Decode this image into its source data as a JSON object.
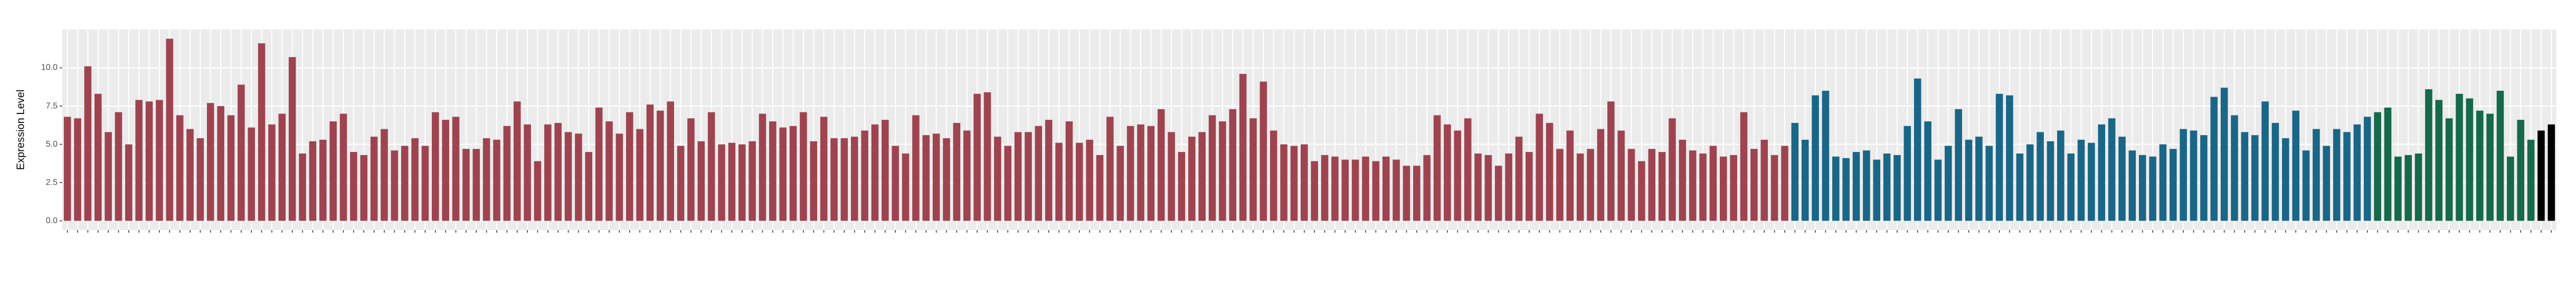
{
  "chart_data": {
    "type": "bar",
    "y_label": "Expression Level",
    "ylim": [
      -0.6,
      12.5
    ],
    "yticks": [
      {
        "value": 0,
        "label": "0.0"
      },
      {
        "value": 2.5,
        "label": "2.5"
      },
      {
        "value": 5,
        "label": "5.0"
      },
      {
        "value": 7.5,
        "label": "7.5"
      },
      {
        "value": 10,
        "label": "10.0"
      }
    ],
    "grid": true,
    "categories": [
      null,
      null,
      null,
      null,
      null,
      null,
      null,
      null,
      null,
      null,
      null,
      null,
      null,
      null,
      null,
      null,
      null,
      null,
      null,
      null,
      null,
      null,
      null,
      null,
      null,
      null,
      null,
      null,
      null,
      null,
      null,
      null,
      null,
      null,
      null,
      null,
      null,
      null,
      null,
      null,
      null,
      null,
      null,
      null,
      null,
      null,
      null,
      null,
      null,
      null,
      null,
      null,
      null,
      null,
      null,
      null,
      null,
      null,
      null,
      null,
      null,
      null,
      null,
      null,
      null,
      null,
      null,
      null,
      null,
      null,
      null,
      null,
      null,
      null,
      null,
      null,
      null,
      null,
      null,
      null,
      null,
      null,
      null,
      null,
      null,
      null,
      null,
      null,
      null,
      null,
      null,
      null,
      null,
      null,
      null,
      null,
      null,
      null,
      null,
      null,
      null,
      null,
      null,
      null,
      null,
      null,
      null,
      null,
      null,
      null,
      null,
      null,
      null,
      null,
      null,
      null,
      null,
      null,
      null,
      null,
      null,
      null,
      null,
      null,
      null,
      null,
      null,
      null,
      null,
      null,
      null,
      null,
      null,
      null,
      null,
      null,
      null,
      null,
      null,
      null,
      null,
      null,
      null,
      null,
      null,
      null,
      null,
      null,
      null,
      null,
      null,
      null,
      null,
      null,
      null,
      null,
      null,
      null,
      null,
      null,
      null,
      null,
      null,
      null,
      null,
      null,
      null,
      null,
      null,
      null,
      null,
      null,
      null,
      null,
      null,
      null,
      null,
      null,
      null,
      null,
      null,
      null,
      null,
      null,
      null,
      null,
      null,
      null,
      null,
      null,
      null,
      null,
      null,
      null,
      null,
      null,
      null,
      null,
      null,
      null,
      null,
      null,
      null,
      null,
      null,
      null,
      null,
      null,
      null,
      null,
      null,
      null,
      null,
      null,
      null,
      null,
      null,
      null,
      null,
      null,
      null,
      null,
      null,
      null,
      null,
      null,
      null,
      null,
      null,
      null,
      null,
      null,
      null,
      null,
      null,
      null,
      null,
      null,
      null,
      null,
      null,
      null,
      null,
      null
    ],
    "values": [
      6.8,
      6.7,
      10.1,
      8.3,
      5.8,
      7.1,
      5.0,
      7.9,
      7.8,
      7.9,
      11.9,
      6.9,
      6.0,
      5.4,
      7.7,
      7.5,
      6.9,
      8.9,
      6.1,
      11.6,
      6.3,
      7.0,
      10.7,
      4.4,
      5.2,
      5.3,
      6.5,
      7.0,
      4.5,
      4.3,
      5.5,
      6.0,
      4.6,
      4.9,
      5.4,
      4.9,
      7.1,
      6.6,
      6.8,
      4.7,
      4.7,
      5.4,
      5.3,
      6.2,
      7.8,
      6.3,
      3.9,
      6.3,
      6.4,
      5.8,
      5.7,
      4.5,
      7.4,
      6.5,
      5.7,
      7.1,
      6.0,
      7.6,
      7.2,
      7.8,
      4.9,
      6.7,
      5.2,
      7.1,
      5.0,
      5.1,
      5.0,
      5.2,
      7.0,
      6.5,
      6.1,
      6.2,
      7.1,
      5.2,
      6.8,
      5.4,
      5.4,
      5.5,
      5.9,
      6.3,
      6.6,
      4.9,
      4.4,
      6.9,
      5.6,
      5.7,
      5.4,
      6.4,
      5.9,
      8.3,
      8.4,
      5.5,
      4.9,
      5.8,
      5.8,
      6.2,
      6.6,
      5.1,
      6.5,
      5.1,
      5.3,
      4.3,
      6.8,
      4.9,
      6.2,
      6.3,
      6.2,
      7.3,
      5.8,
      4.5,
      5.5,
      5.8,
      6.9,
      6.5,
      7.3,
      9.6,
      6.7,
      9.1,
      5.9,
      5.0,
      4.9,
      5.0,
      3.9,
      4.3,
      4.2,
      4.0,
      4.0,
      4.2,
      3.9,
      4.2,
      4.0,
      3.6,
      3.6,
      4.3,
      6.9,
      6.3,
      5.9,
      6.7,
      4.4,
      4.3,
      3.6,
      4.4,
      5.5,
      4.5,
      7.0,
      6.4,
      4.7,
      5.9,
      4.4,
      4.7,
      6.0,
      7.8,
      5.9,
      4.7,
      3.9,
      4.7,
      4.5,
      6.7,
      5.3,
      4.6,
      4.4,
      4.9,
      4.2,
      4.3,
      7.1,
      4.7,
      5.3,
      4.3,
      4.9,
      6.4,
      5.3,
      8.2,
      8.5,
      4.2,
      4.1,
      4.5,
      4.6,
      4.0,
      4.4,
      4.3,
      6.2,
      9.3,
      6.5,
      4.0,
      4.9,
      7.3,
      5.3,
      5.5,
      4.9,
      8.3,
      8.2,
      4.4,
      5.0,
      5.8,
      5.2,
      5.9,
      4.4,
      5.3,
      5.1,
      6.3,
      6.7,
      5.5,
      4.6,
      4.3,
      4.2,
      5.0,
      4.7,
      6.0,
      5.9,
      5.6,
      8.1,
      8.7,
      6.9,
      5.8,
      5.6,
      7.8,
      6.4,
      5.4,
      7.2,
      4.6,
      6.0,
      4.9,
      6.0,
      5.8,
      6.3,
      6.8,
      7.1,
      7.4,
      4.2,
      4.3,
      4.4,
      8.6,
      7.9,
      6.7,
      8.3,
      8.0,
      7.2,
      7.0,
      8.5,
      4.2,
      6.6,
      5.3,
      5.9,
      6.3
    ],
    "colors": [
      "#9e4450",
      "#9e4450",
      "#9e4450",
      "#9e4450",
      "#9e4450",
      "#9e4450",
      "#9e4450",
      "#9e4450",
      "#9e4450",
      "#9e4450",
      "#9e4450",
      "#9e4450",
      "#9e4450",
      "#9e4450",
      "#9e4450",
      "#9e4450",
      "#9e4450",
      "#9e4450",
      "#9e4450",
      "#9e4450",
      "#9e4450",
      "#9e4450",
      "#9e4450",
      "#9e4450",
      "#9e4450",
      "#9e4450",
      "#9e4450",
      "#9e4450",
      "#9e4450",
      "#9e4450",
      "#9e4450",
      "#9e4450",
      "#9e4450",
      "#9e4450",
      "#9e4450",
      "#9e4450",
      "#9e4450",
      "#9e4450",
      "#9e4450",
      "#9e4450",
      "#9e4450",
      "#9e4450",
      "#9e4450",
      "#9e4450",
      "#9e4450",
      "#9e4450",
      "#9e4450",
      "#9e4450",
      "#9e4450",
      "#9e4450",
      "#9e4450",
      "#9e4450",
      "#9e4450",
      "#9e4450",
      "#9e4450",
      "#9e4450",
      "#9e4450",
      "#9e4450",
      "#9e4450",
      "#9e4450",
      "#9e4450",
      "#9e4450",
      "#9e4450",
      "#9e4450",
      "#9e4450",
      "#9e4450",
      "#9e4450",
      "#9e4450",
      "#9e4450",
      "#9e4450",
      "#9e4450",
      "#9e4450",
      "#9e4450",
      "#9e4450",
      "#9e4450",
      "#9e4450",
      "#9e4450",
      "#9e4450",
      "#9e4450",
      "#9e4450",
      "#9e4450",
      "#9e4450",
      "#9e4450",
      "#9e4450",
      "#9e4450",
      "#9e4450",
      "#9e4450",
      "#9e4450",
      "#9e4450",
      "#9e4450",
      "#9e4450",
      "#9e4450",
      "#9e4450",
      "#9e4450",
      "#9e4450",
      "#9e4450",
      "#9e4450",
      "#9e4450",
      "#9e4450",
      "#9e4450",
      "#9e4450",
      "#9e4450",
      "#9e4450",
      "#9e4450",
      "#9e4450",
      "#9e4450",
      "#9e4450",
      "#9e4450",
      "#9e4450",
      "#9e4450",
      "#9e4450",
      "#9e4450",
      "#9e4450",
      "#9e4450",
      "#9e4450",
      "#9e4450",
      "#9e4450",
      "#9e4450",
      "#9e4450",
      "#9e4450",
      "#9e4450",
      "#9e4450",
      "#9e4450",
      "#9e4450",
      "#9e4450",
      "#9e4450",
      "#9e4450",
      "#9e4450",
      "#9e4450",
      "#9e4450",
      "#9e4450",
      "#9e4450",
      "#9e4450",
      "#9e4450",
      "#9e4450",
      "#9e4450",
      "#9e4450",
      "#9e4450",
      "#9e4450",
      "#9e4450",
      "#9e4450",
      "#9e4450",
      "#9e4450",
      "#9e4450",
      "#9e4450",
      "#9e4450",
      "#9e4450",
      "#9e4450",
      "#9e4450",
      "#9e4450",
      "#9e4450",
      "#9e4450",
      "#9e4450",
      "#9e4450",
      "#9e4450",
      "#9e4450",
      "#9e4450",
      "#9e4450",
      "#9e4450",
      "#9e4450",
      "#9e4450",
      "#9e4450",
      "#9e4450",
      "#9e4450",
      "#9e4450",
      "#9e4450",
      "#9e4450",
      "#9e4450",
      "#9e4450",
      "#1a6687",
      "#1a6687",
      "#1a6687",
      "#1a6687",
      "#1a6687",
      "#1a6687",
      "#1a6687",
      "#1a6687",
      "#1a6687",
      "#1a6687",
      "#1a6687",
      "#1a6687",
      "#1a6687",
      "#1a6687",
      "#1a6687",
      "#1a6687",
      "#1a6687",
      "#1a6687",
      "#1a6687",
      "#1a6687",
      "#1a6687",
      "#1a6687",
      "#1a6687",
      "#1a6687",
      "#1a6687",
      "#1a6687",
      "#1a6687",
      "#1a6687",
      "#1a6687",
      "#1a6687",
      "#1a6687",
      "#1a6687",
      "#1a6687",
      "#1a6687",
      "#1a6687",
      "#1a6687",
      "#1a6687",
      "#1a6687",
      "#1a6687",
      "#1a6687",
      "#1a6687",
      "#1a6687",
      "#1a6687",
      "#1a6687",
      "#1a6687",
      "#1a6687",
      "#1a6687",
      "#1a6687",
      "#1a6687",
      "#1a6687",
      "#1a6687",
      "#1a6687",
      "#1a6687",
      "#1a6687",
      "#1a6687",
      "#1a6687",
      "#1a6687",
      "#16694a",
      "#16694a",
      "#16694a",
      "#16694a",
      "#16694a",
      "#16694a",
      "#16694a",
      "#16694a",
      "#16694a",
      "#16694a",
      "#16694a",
      "#16694a",
      "#16694a",
      "#16694a",
      "#16694a",
      "#16694a"
    ]
  }
}
